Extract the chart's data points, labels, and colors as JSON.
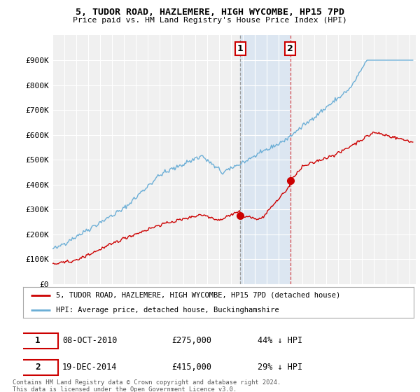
{
  "title": "5, TUDOR ROAD, HAZLEMERE, HIGH WYCOMBE, HP15 7PD",
  "subtitle": "Price paid vs. HM Land Registry's House Price Index (HPI)",
  "ylabel_max": 1000000,
  "yticks": [
    0,
    100000,
    200000,
    300000,
    400000,
    500000,
    600000,
    700000,
    800000,
    900000
  ],
  "ytick_labels": [
    "£0",
    "£100K",
    "£200K",
    "£300K",
    "£400K",
    "£500K",
    "£600K",
    "£700K",
    "£800K",
    "£900K"
  ],
  "xmin": 1995.0,
  "xmax": 2025.5,
  "hpi_color": "#6baed6",
  "price_color": "#cc0000",
  "transaction1_x": 2010.77,
  "transaction1_y": 275000,
  "transaction2_x": 2014.96,
  "transaction2_y": 415000,
  "annotation1_label": "1",
  "annotation2_label": "2",
  "legend_line1": "5, TUDOR ROAD, HAZLEMERE, HIGH WYCOMBE, HP15 7PD (detached house)",
  "legend_line2": "HPI: Average price, detached house, Buckinghamshire",
  "table_row1": [
    "1",
    "08-OCT-2010",
    "£275,000",
    "44% ↓ HPI"
  ],
  "table_row2": [
    "2",
    "19-DEC-2014",
    "£415,000",
    "29% ↓ HPI"
  ],
  "footnote": "Contains HM Land Registry data © Crown copyright and database right 2024.\nThis data is licensed under the Open Government Licence v3.0.",
  "bg_color": "#ffffff",
  "plot_bg_color": "#f0f0f0",
  "highlight_bg": "#dce6f1",
  "grid_color": "#ffffff"
}
